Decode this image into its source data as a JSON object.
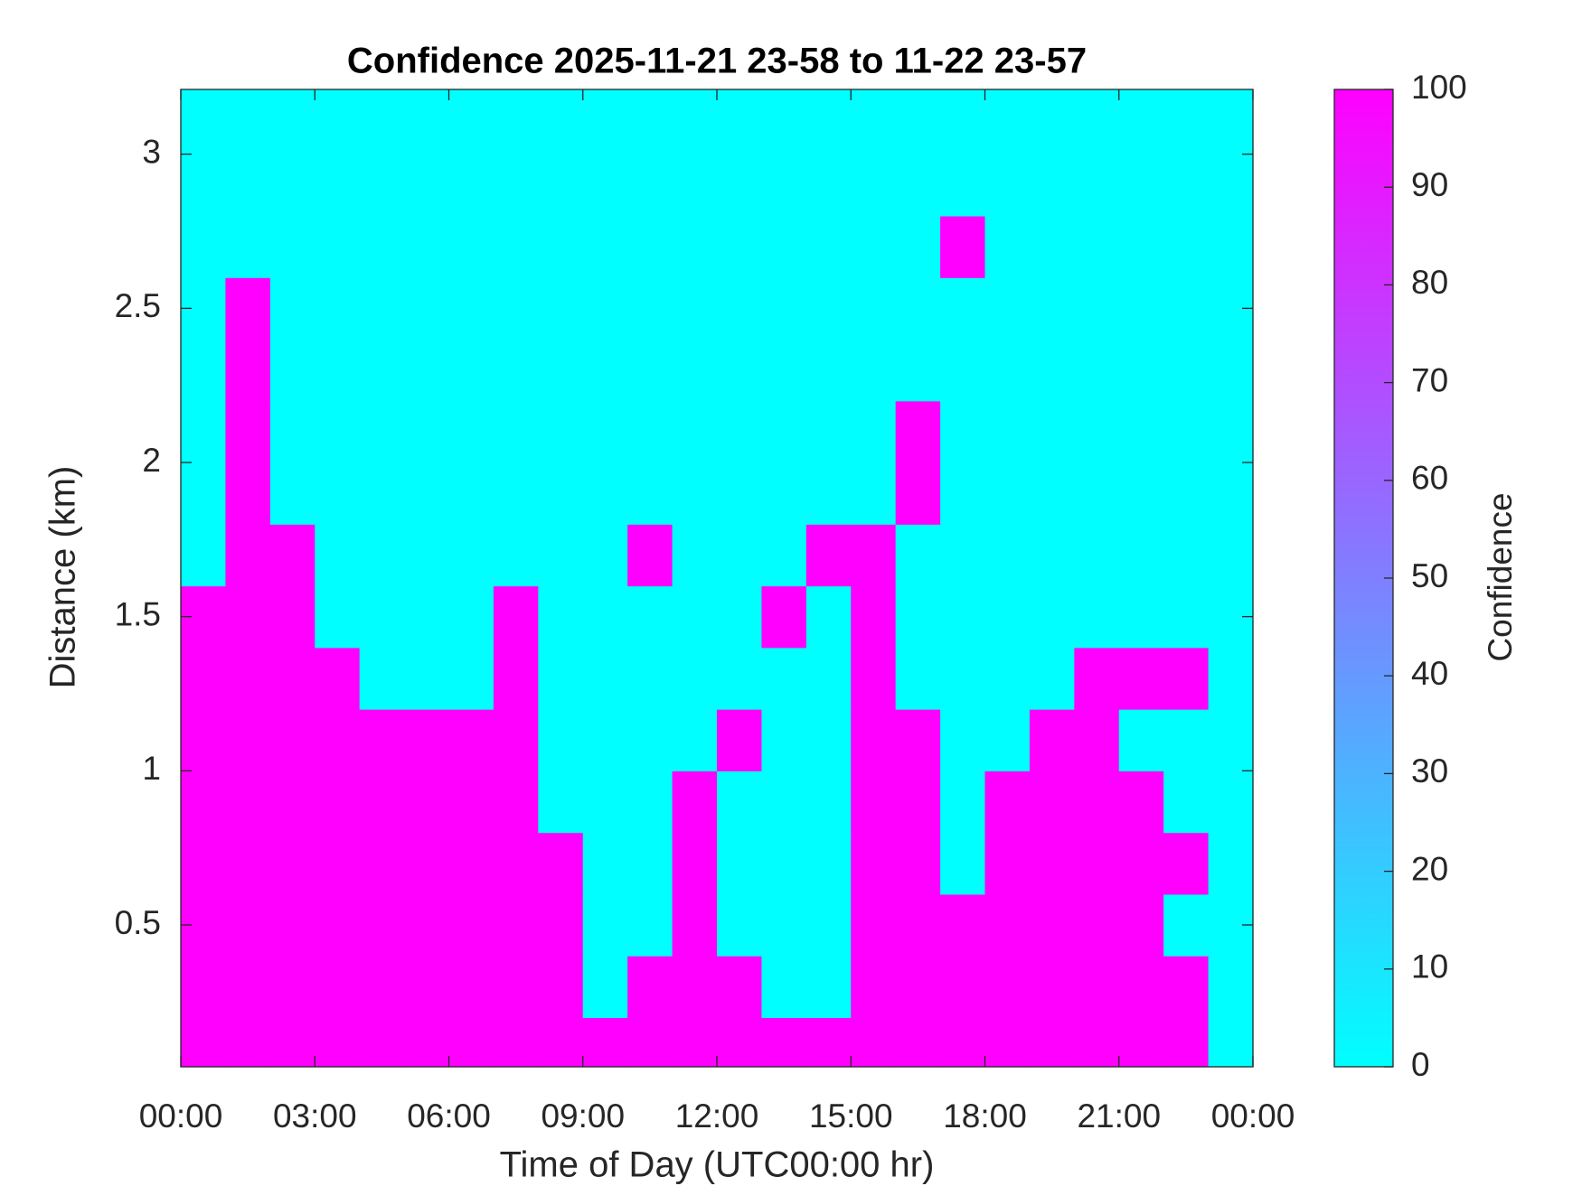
{
  "chart_data": {
    "type": "heatmap",
    "title": "Confidence 2025-11-21 23-58 to 11-22 23-57",
    "xlabel": "Time of Day (UTC00:00 hr)",
    "ylabel": "Distance (km)",
    "colorbar_label": "Confidence",
    "colormap": [
      "#00ffff",
      "#ff00ff"
    ],
    "clim": [
      0,
      100
    ],
    "cticks": [
      0,
      10,
      20,
      30,
      40,
      50,
      60,
      70,
      80,
      90,
      100
    ],
    "xlim": [
      0,
      24
    ],
    "xticks": [
      {
        "value": 0,
        "label": "00:00"
      },
      {
        "value": 3,
        "label": "03:00"
      },
      {
        "value": 6,
        "label": "06:00"
      },
      {
        "value": 9,
        "label": "09:00"
      },
      {
        "value": 12,
        "label": "12:00"
      },
      {
        "value": 15,
        "label": "15:00"
      },
      {
        "value": 18,
        "label": "18:00"
      },
      {
        "value": 21,
        "label": "21:00"
      },
      {
        "value": 24,
        "label": "00:00"
      }
    ],
    "ylim": [
      0.04,
      3.21
    ],
    "yticks": [
      0.5,
      1,
      1.5,
      2,
      2.5,
      3
    ],
    "x": [
      0.5,
      1.5,
      2.5,
      3.5,
      4.5,
      5.5,
      6.5,
      7.5,
      8.5,
      9.5,
      10.5,
      11.5,
      12.5,
      13.5,
      14.5,
      15.5,
      16.5,
      17.5,
      18.5,
      19.5,
      20.5,
      21.5,
      22.5,
      23.5
    ],
    "y": [
      0.1,
      0.3,
      0.5,
      0.7,
      0.9,
      1.1,
      1.3,
      1.5,
      1.7,
      1.9,
      2.1,
      2.3,
      2.5,
      2.7,
      2.9,
      3.1
    ],
    "z": [
      [
        100,
        100,
        100,
        100,
        100,
        100,
        100,
        100,
        100,
        100,
        100,
        100,
        100,
        100,
        100,
        100,
        100,
        100,
        100,
        100,
        100,
        100,
        100,
        0
      ],
      [
        100,
        100,
        100,
        100,
        100,
        100,
        100,
        100,
        100,
        0,
        100,
        100,
        100,
        0,
        0,
        100,
        100,
        100,
        100,
        100,
        100,
        100,
        100,
        0
      ],
      [
        100,
        100,
        100,
        100,
        100,
        100,
        100,
        100,
        100,
        0,
        0,
        100,
        0,
        0,
        0,
        100,
        100,
        100,
        100,
        100,
        100,
        100,
        0,
        0
      ],
      [
        100,
        100,
        100,
        100,
        100,
        100,
        100,
        100,
        100,
        0,
        0,
        100,
        0,
        0,
        0,
        100,
        100,
        0,
        100,
        100,
        100,
        100,
        100,
        0
      ],
      [
        100,
        100,
        100,
        100,
        100,
        100,
        100,
        100,
        0,
        0,
        0,
        100,
        0,
        0,
        0,
        100,
        100,
        0,
        100,
        100,
        100,
        100,
        0,
        0
      ],
      [
        100,
        100,
        100,
        100,
        100,
        100,
        100,
        100,
        0,
        0,
        0,
        0,
        100,
        0,
        0,
        100,
        100,
        0,
        0,
        100,
        100,
        0,
        0,
        0
      ],
      [
        100,
        100,
        100,
        100,
        0,
        0,
        0,
        100,
        0,
        0,
        0,
        0,
        0,
        0,
        0,
        100,
        0,
        0,
        0,
        0,
        100,
        100,
        100,
        0
      ],
      [
        100,
        100,
        100,
        0,
        0,
        0,
        0,
        100,
        0,
        0,
        0,
        0,
        0,
        100,
        0,
        100,
        0,
        0,
        0,
        0,
        0,
        0,
        0,
        0
      ],
      [
        0,
        100,
        100,
        0,
        0,
        0,
        0,
        0,
        0,
        0,
        100,
        0,
        0,
        0,
        100,
        100,
        0,
        0,
        0,
        0,
        0,
        0,
        0,
        0
      ],
      [
        0,
        100,
        0,
        0,
        0,
        0,
        0,
        0,
        0,
        0,
        0,
        0,
        0,
        0,
        0,
        0,
        100,
        0,
        0,
        0,
        0,
        0,
        0,
        0
      ],
      [
        0,
        100,
        0,
        0,
        0,
        0,
        0,
        0,
        0,
        0,
        0,
        0,
        0,
        0,
        0,
        0,
        100,
        0,
        0,
        0,
        0,
        0,
        0,
        0
      ],
      [
        0,
        100,
        0,
        0,
        0,
        0,
        0,
        0,
        0,
        0,
        0,
        0,
        0,
        0,
        0,
        0,
        0,
        0,
        0,
        0,
        0,
        0,
        0,
        0
      ],
      [
        0,
        100,
        0,
        0,
        0,
        0,
        0,
        0,
        0,
        0,
        0,
        0,
        0,
        0,
        0,
        0,
        0,
        0,
        0,
        0,
        0,
        0,
        0,
        0
      ],
      [
        0,
        0,
        0,
        0,
        0,
        0,
        0,
        0,
        0,
        0,
        0,
        0,
        0,
        0,
        0,
        0,
        0,
        100,
        0,
        0,
        0,
        0,
        0,
        0
      ],
      [
        0,
        0,
        0,
        0,
        0,
        0,
        0,
        0,
        0,
        0,
        0,
        0,
        0,
        0,
        0,
        0,
        0,
        0,
        0,
        0,
        0,
        0,
        0,
        0
      ],
      [
        0,
        0,
        0,
        0,
        0,
        0,
        0,
        0,
        0,
        0,
        0,
        0,
        0,
        0,
        0,
        0,
        0,
        0,
        0,
        0,
        0,
        0,
        0,
        0
      ]
    ]
  }
}
